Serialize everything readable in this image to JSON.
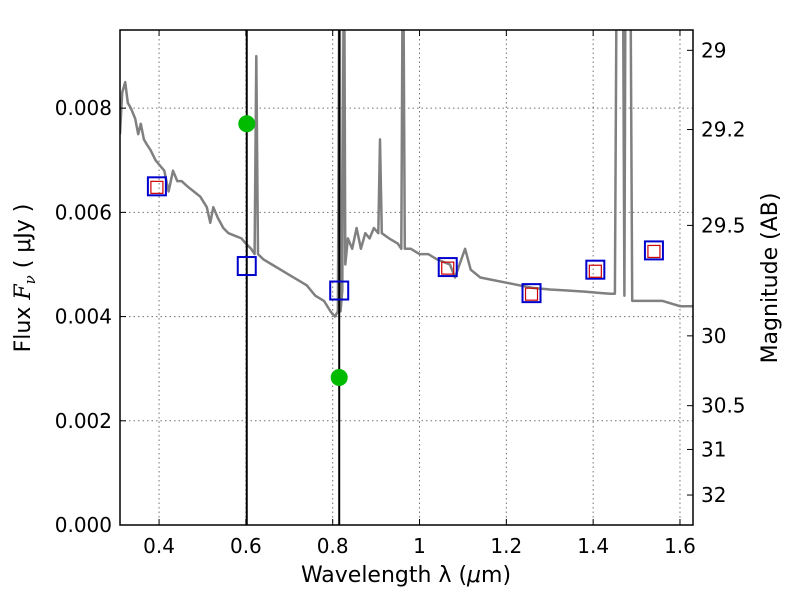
{
  "chart_data": {
    "type": "line",
    "xlabel_prefix": "Wavelength  λ (",
    "xlabel_unit_mu": "μ",
    "xlabel_unit_rest": "m)",
    "ylabel_prefix": "Flux  ",
    "ylabel_var": "F",
    "ylabel_sub": "ν",
    "ylabel_unit": "  ( μJy )",
    "y2label": "Magnitude (AB)",
    "xlim": [
      0.31,
      1.63
    ],
    "ylim": [
      0.0,
      0.0095
    ],
    "grid": true,
    "x_ticks": [
      "0.4",
      "0.6",
      "0.8",
      "1",
      "1.2",
      "1.4",
      "1.6"
    ],
    "x_tick_values": [
      0.4,
      0.6,
      0.8,
      1.0,
      1.2,
      1.4,
      1.6
    ],
    "y_ticks": [
      "0.000",
      "0.002",
      "0.004",
      "0.006",
      "0.008"
    ],
    "y_tick_values": [
      0.0,
      0.002,
      0.004,
      0.006,
      0.008
    ],
    "y2_ticks": [
      "29",
      "29.2",
      "29.5",
      "30",
      "30.5",
      "31",
      "32"
    ],
    "y2_tick_flux": [
      0.00911,
      0.00759,
      0.00575,
      0.00363,
      0.00229,
      0.00145,
      0.000575
    ],
    "vertical_lines": [
      0.602,
      0.815
    ],
    "colors": {
      "spectrum": "#808080",
      "observed": "#0000cc",
      "model": "#cc0000",
      "upper_limits": "#00bb00"
    },
    "spectrum": {
      "name": "",
      "points": [
        [
          0.31,
          0.0075
        ],
        [
          0.315,
          0.0083
        ],
        [
          0.322,
          0.0085
        ],
        [
          0.328,
          0.0081
        ],
        [
          0.335,
          0.008
        ],
        [
          0.345,
          0.0078
        ],
        [
          0.352,
          0.0075
        ],
        [
          0.358,
          0.0077
        ],
        [
          0.365,
          0.0074
        ],
        [
          0.372,
          0.0073
        ],
        [
          0.38,
          0.0072
        ],
        [
          0.392,
          0.007
        ],
        [
          0.402,
          0.0069
        ],
        [
          0.412,
          0.0068
        ],
        [
          0.422,
          0.0064
        ],
        [
          0.432,
          0.0068
        ],
        [
          0.442,
          0.0066
        ],
        [
          0.452,
          0.0066
        ],
        [
          0.465,
          0.0065
        ],
        [
          0.48,
          0.0064
        ],
        [
          0.495,
          0.0063
        ],
        [
          0.51,
          0.0061
        ],
        [
          0.518,
          0.0058
        ],
        [
          0.525,
          0.0061
        ],
        [
          0.535,
          0.0059
        ],
        [
          0.548,
          0.0057
        ],
        [
          0.56,
          0.0056
        ],
        [
          0.575,
          0.00555
        ],
        [
          0.59,
          0.0055
        ],
        [
          0.6,
          0.0054
        ],
        [
          0.612,
          0.0053
        ],
        [
          0.62,
          0.0052
        ],
        [
          0.624,
          0.009
        ],
        [
          0.628,
          0.0052
        ],
        [
          0.64,
          0.0051
        ],
        [
          0.66,
          0.005
        ],
        [
          0.68,
          0.0049
        ],
        [
          0.7,
          0.0048
        ],
        [
          0.72,
          0.0047
        ],
        [
          0.74,
          0.0046
        ],
        [
          0.76,
          0.0044
        ],
        [
          0.78,
          0.0043
        ],
        [
          0.795,
          0.0041
        ],
        [
          0.805,
          0.004
        ],
        [
          0.812,
          0.0041
        ],
        [
          0.816,
          0.012
        ],
        [
          0.818,
          0.0041
        ],
        [
          0.822,
          0.0045
        ],
        [
          0.826,
          0.012
        ],
        [
          0.829,
          0.005
        ],
        [
          0.835,
          0.0055
        ],
        [
          0.845,
          0.0053
        ],
        [
          0.855,
          0.0057
        ],
        [
          0.865,
          0.0053
        ],
        [
          0.875,
          0.0056
        ],
        [
          0.885,
          0.0055
        ],
        [
          0.895,
          0.0057
        ],
        [
          0.905,
          0.0056
        ],
        [
          0.909,
          0.0074
        ],
        [
          0.913,
          0.0056
        ],
        [
          0.93,
          0.0055
        ],
        [
          0.95,
          0.0054
        ],
        [
          0.958,
          0.0053
        ],
        [
          0.962,
          0.012
        ],
        [
          0.966,
          0.0053
        ],
        [
          0.98,
          0.0053
        ],
        [
          1.0,
          0.0052
        ],
        [
          1.02,
          0.0052
        ],
        [
          1.04,
          0.0051
        ],
        [
          1.07,
          0.005
        ],
        [
          1.082,
          0.00475
        ],
        [
          1.092,
          0.005
        ],
        [
          1.105,
          0.0053
        ],
        [
          1.118,
          0.0049
        ],
        [
          1.14,
          0.00475
        ],
        [
          1.17,
          0.0047
        ],
        [
          1.2,
          0.00465
        ],
        [
          1.23,
          0.0046
        ],
        [
          1.26,
          0.00455
        ],
        [
          1.3,
          0.00452
        ],
        [
          1.34,
          0.0045
        ],
        [
          1.38,
          0.00448
        ],
        [
          1.42,
          0.00445
        ],
        [
          1.44,
          0.00444
        ],
        [
          1.45,
          0.00444
        ],
        [
          1.455,
          0.012
        ],
        [
          1.462,
          0.012
        ],
        [
          1.468,
          0.012
        ],
        [
          1.472,
          0.0044
        ],
        [
          1.475,
          0.012
        ],
        [
          1.485,
          0.012
        ],
        [
          1.49,
          0.0043
        ],
        [
          1.5,
          0.0043
        ],
        [
          1.52,
          0.0043
        ],
        [
          1.56,
          0.0043
        ],
        [
          1.6,
          0.0042
        ],
        [
          1.63,
          0.0042
        ]
      ]
    },
    "observed_points": {
      "name": "",
      "x": [
        0.395,
        0.602,
        0.815,
        1.065,
        1.258,
        1.405,
        1.54
      ],
      "y": [
        0.0065,
        0.00497,
        0.0045,
        0.00495,
        0.00445,
        0.0049,
        0.00527
      ]
    },
    "model_points": {
      "name": "",
      "x": [
        0.395,
        1.065,
        1.258,
        1.405,
        1.54
      ],
      "y": [
        0.00648,
        0.00493,
        0.00443,
        0.00487,
        0.00525
      ]
    },
    "upper_limits": {
      "name": "",
      "x": [
        0.602,
        0.815
      ],
      "y": [
        0.0077,
        0.00283
      ]
    }
  }
}
